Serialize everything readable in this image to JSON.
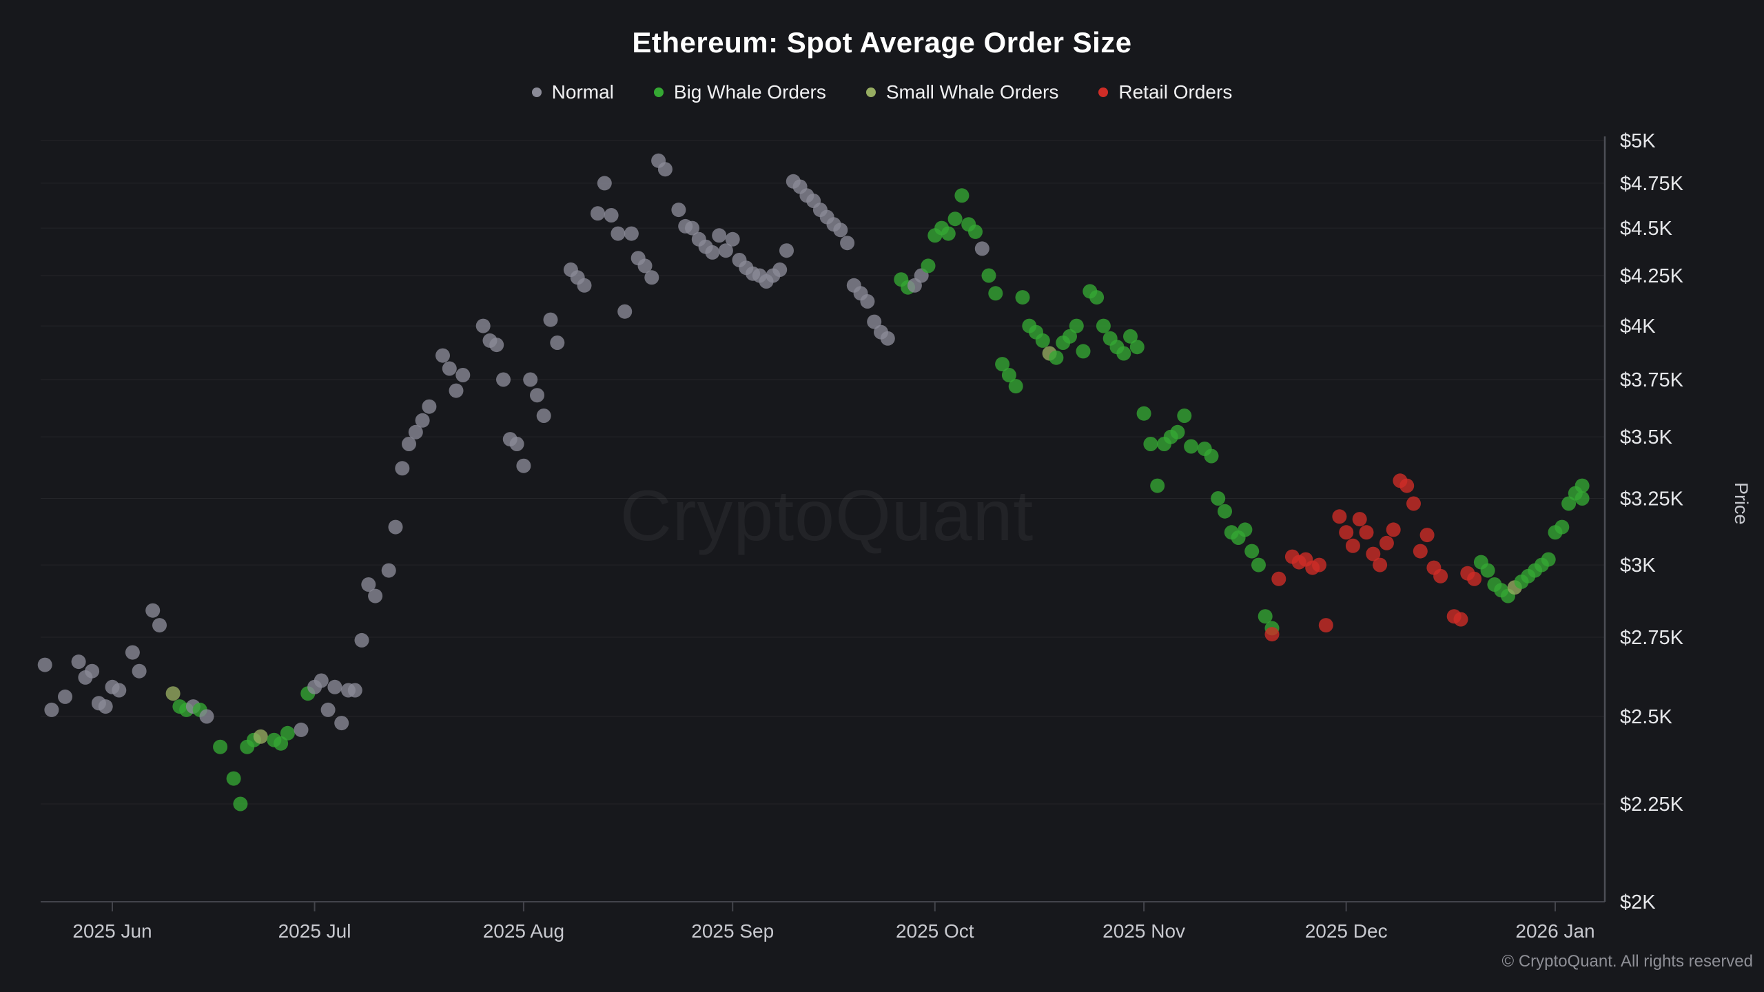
{
  "title": "Ethereum: Spot Average Order Size",
  "watermark": "CryptoQuant",
  "footer": {
    "copyright": "© CryptoQuant. All rights reserved"
  },
  "legend": [
    {
      "key": "normal",
      "label": "Normal",
      "color": "#8b8b97"
    },
    {
      "key": "big_whale",
      "label": "Big Whale Orders",
      "color": "#35a833"
    },
    {
      "key": "small_whale",
      "label": "Small Whale Orders",
      "color": "#97ad62"
    },
    {
      "key": "retail",
      "label": "Retail Orders",
      "color": "#cf2d27"
    }
  ],
  "y_axis": {
    "title": "Price",
    "scale": "log",
    "ticks": [
      {
        "label": "$5K",
        "value": 5000
      },
      {
        "label": "$4.75K",
        "value": 4750
      },
      {
        "label": "$4.5K",
        "value": 4500
      },
      {
        "label": "$4.25K",
        "value": 4250
      },
      {
        "label": "$4K",
        "value": 4000
      },
      {
        "label": "$3.75K",
        "value": 3750
      },
      {
        "label": "$3.5K",
        "value": 3500
      },
      {
        "label": "$3.25K",
        "value": 3250
      },
      {
        "label": "$3K",
        "value": 3000
      },
      {
        "label": "$2.75K",
        "value": 2750
      },
      {
        "label": "$2.5K",
        "value": 2500
      },
      {
        "label": "$2.25K",
        "value": 2250
      },
      {
        "label": "$2K",
        "value": 2000
      }
    ]
  },
  "x_axis": {
    "ticks": [
      {
        "label": "2025 Jun",
        "date": "2025-06-01"
      },
      {
        "label": "2025 Jul",
        "date": "2025-07-01"
      },
      {
        "label": "2025 Aug",
        "date": "2025-08-01"
      },
      {
        "label": "2025 Sep",
        "date": "2025-09-01"
      },
      {
        "label": "2025 Oct",
        "date": "2025-10-01"
      },
      {
        "label": "2025 Nov",
        "date": "2025-11-01"
      },
      {
        "label": "2025 Dec",
        "date": "2025-12-01"
      },
      {
        "label": "2026 Jan",
        "date": "2026-01-01"
      }
    ]
  },
  "chart_data": {
    "type": "scatter",
    "title": "Ethereum: Spot Average Order Size",
    "ylabel": "Price",
    "y_scale": "log",
    "ylim": [
      2000,
      5000
    ],
    "x_range": [
      "2025-05-20",
      "2026-01-08"
    ],
    "grid": true,
    "legend_position": "top",
    "categories": [
      "normal",
      "big_whale",
      "small_whale",
      "retail"
    ],
    "points": [
      [
        "2025-05-22",
        2660,
        "normal"
      ],
      [
        "2025-05-23",
        2520,
        "normal"
      ],
      [
        "2025-05-25",
        2560,
        "normal"
      ],
      [
        "2025-05-27",
        2670,
        "normal"
      ],
      [
        "2025-05-28",
        2620,
        "normal"
      ],
      [
        "2025-05-29",
        2640,
        "normal"
      ],
      [
        "2025-05-30",
        2540,
        "normal"
      ],
      [
        "2025-05-31",
        2530,
        "normal"
      ],
      [
        "2025-06-01",
        2590,
        "normal"
      ],
      [
        "2025-06-02",
        2580,
        "normal"
      ],
      [
        "2025-06-04",
        2700,
        "normal"
      ],
      [
        "2025-06-05",
        2640,
        "normal"
      ],
      [
        "2025-06-07",
        2840,
        "normal"
      ],
      [
        "2025-06-08",
        2790,
        "normal"
      ],
      [
        "2025-06-10",
        2570,
        "small_whale"
      ],
      [
        "2025-06-11",
        2530,
        "big_whale"
      ],
      [
        "2025-06-12",
        2520,
        "big_whale"
      ],
      [
        "2025-06-13",
        2530,
        "normal"
      ],
      [
        "2025-06-14",
        2520,
        "big_whale"
      ],
      [
        "2025-06-15",
        2500,
        "normal"
      ],
      [
        "2025-06-17",
        2410,
        "big_whale"
      ],
      [
        "2025-06-19",
        2320,
        "big_whale"
      ],
      [
        "2025-06-20",
        2250,
        "big_whale"
      ],
      [
        "2025-06-21",
        2410,
        "big_whale"
      ],
      [
        "2025-06-22",
        2430,
        "big_whale"
      ],
      [
        "2025-06-23",
        2440,
        "small_whale"
      ],
      [
        "2025-06-25",
        2430,
        "big_whale"
      ],
      [
        "2025-06-26",
        2420,
        "big_whale"
      ],
      [
        "2025-06-27",
        2450,
        "big_whale"
      ],
      [
        "2025-06-29",
        2460,
        "normal"
      ],
      [
        "2025-06-30",
        2570,
        "big_whale"
      ],
      [
        "2025-07-01",
        2590,
        "normal"
      ],
      [
        "2025-07-02",
        2610,
        "normal"
      ],
      [
        "2025-07-03",
        2520,
        "normal"
      ],
      [
        "2025-07-04",
        2590,
        "normal"
      ],
      [
        "2025-07-05",
        2480,
        "normal"
      ],
      [
        "2025-07-06",
        2580,
        "normal"
      ],
      [
        "2025-07-07",
        2580,
        "normal"
      ],
      [
        "2025-07-08",
        2740,
        "normal"
      ],
      [
        "2025-07-09",
        2930,
        "normal"
      ],
      [
        "2025-07-10",
        2890,
        "normal"
      ],
      [
        "2025-07-12",
        2980,
        "normal"
      ],
      [
        "2025-07-13",
        3140,
        "normal"
      ],
      [
        "2025-07-14",
        3370,
        "normal"
      ],
      [
        "2025-07-15",
        3470,
        "normal"
      ],
      [
        "2025-07-16",
        3520,
        "normal"
      ],
      [
        "2025-07-17",
        3570,
        "normal"
      ],
      [
        "2025-07-18",
        3630,
        "normal"
      ],
      [
        "2025-07-20",
        3860,
        "normal"
      ],
      [
        "2025-07-21",
        3800,
        "normal"
      ],
      [
        "2025-07-22",
        3700,
        "normal"
      ],
      [
        "2025-07-23",
        3770,
        "normal"
      ],
      [
        "2025-07-26",
        4000,
        "normal"
      ],
      [
        "2025-07-27",
        3930,
        "normal"
      ],
      [
        "2025-07-28",
        3910,
        "normal"
      ],
      [
        "2025-07-29",
        3750,
        "normal"
      ],
      [
        "2025-07-30",
        3490,
        "normal"
      ],
      [
        "2025-07-31",
        3470,
        "normal"
      ],
      [
        "2025-08-01",
        3380,
        "normal"
      ],
      [
        "2025-08-02",
        3750,
        "normal"
      ],
      [
        "2025-08-03",
        3680,
        "normal"
      ],
      [
        "2025-08-04",
        3590,
        "normal"
      ],
      [
        "2025-08-05",
        4030,
        "normal"
      ],
      [
        "2025-08-06",
        3920,
        "normal"
      ],
      [
        "2025-08-08",
        4280,
        "normal"
      ],
      [
        "2025-08-09",
        4240,
        "normal"
      ],
      [
        "2025-08-10",
        4200,
        "normal"
      ],
      [
        "2025-08-12",
        4580,
        "normal"
      ],
      [
        "2025-08-13",
        4750,
        "normal"
      ],
      [
        "2025-08-14",
        4570,
        "normal"
      ],
      [
        "2025-08-15",
        4470,
        "normal"
      ],
      [
        "2025-08-16",
        4070,
        "normal"
      ],
      [
        "2025-08-17",
        4470,
        "normal"
      ],
      [
        "2025-08-18",
        4340,
        "normal"
      ],
      [
        "2025-08-19",
        4300,
        "normal"
      ],
      [
        "2025-08-20",
        4240,
        "normal"
      ],
      [
        "2025-08-21",
        4880,
        "normal"
      ],
      [
        "2025-08-22",
        4830,
        "normal"
      ],
      [
        "2025-08-24",
        4600,
        "normal"
      ],
      [
        "2025-08-25",
        4510,
        "normal"
      ],
      [
        "2025-08-26",
        4500,
        "normal"
      ],
      [
        "2025-08-27",
        4440,
        "normal"
      ],
      [
        "2025-08-28",
        4400,
        "normal"
      ],
      [
        "2025-08-29",
        4370,
        "normal"
      ],
      [
        "2025-08-30",
        4460,
        "normal"
      ],
      [
        "2025-08-31",
        4380,
        "normal"
      ],
      [
        "2025-09-01",
        4440,
        "normal"
      ],
      [
        "2025-09-02",
        4330,
        "normal"
      ],
      [
        "2025-09-03",
        4290,
        "normal"
      ],
      [
        "2025-09-04",
        4260,
        "normal"
      ],
      [
        "2025-09-05",
        4250,
        "normal"
      ],
      [
        "2025-09-06",
        4220,
        "normal"
      ],
      [
        "2025-09-07",
        4250,
        "normal"
      ],
      [
        "2025-09-08",
        4280,
        "normal"
      ],
      [
        "2025-09-09",
        4380,
        "normal"
      ],
      [
        "2025-09-10",
        4760,
        "normal"
      ],
      [
        "2025-09-11",
        4730,
        "normal"
      ],
      [
        "2025-09-12",
        4680,
        "normal"
      ],
      [
        "2025-09-13",
        4650,
        "normal"
      ],
      [
        "2025-09-14",
        4600,
        "normal"
      ],
      [
        "2025-09-15",
        4560,
        "normal"
      ],
      [
        "2025-09-16",
        4520,
        "normal"
      ],
      [
        "2025-09-17",
        4490,
        "normal"
      ],
      [
        "2025-09-18",
        4420,
        "normal"
      ],
      [
        "2025-09-19",
        4200,
        "normal"
      ],
      [
        "2025-09-20",
        4160,
        "normal"
      ],
      [
        "2025-09-21",
        4120,
        "normal"
      ],
      [
        "2025-09-22",
        4020,
        "normal"
      ],
      [
        "2025-09-23",
        3970,
        "normal"
      ],
      [
        "2025-09-24",
        3940,
        "normal"
      ],
      [
        "2025-09-26",
        4230,
        "big_whale"
      ],
      [
        "2025-09-27",
        4190,
        "big_whale"
      ],
      [
        "2025-09-28",
        4200,
        "normal"
      ],
      [
        "2025-09-29",
        4250,
        "normal"
      ],
      [
        "2025-09-30",
        4300,
        "big_whale"
      ],
      [
        "2025-10-01",
        4460,
        "big_whale"
      ],
      [
        "2025-10-02",
        4500,
        "big_whale"
      ],
      [
        "2025-10-03",
        4470,
        "big_whale"
      ],
      [
        "2025-10-04",
        4550,
        "big_whale"
      ],
      [
        "2025-10-05",
        4680,
        "big_whale"
      ],
      [
        "2025-10-06",
        4520,
        "big_whale"
      ],
      [
        "2025-10-07",
        4480,
        "big_whale"
      ],
      [
        "2025-10-08",
        4390,
        "normal"
      ],
      [
        "2025-10-09",
        4250,
        "big_whale"
      ],
      [
        "2025-10-10",
        4160,
        "big_whale"
      ],
      [
        "2025-10-11",
        3820,
        "big_whale"
      ],
      [
        "2025-10-12",
        3770,
        "big_whale"
      ],
      [
        "2025-10-13",
        3720,
        "big_whale"
      ],
      [
        "2025-10-14",
        4140,
        "big_whale"
      ],
      [
        "2025-10-15",
        4000,
        "big_whale"
      ],
      [
        "2025-10-16",
        3970,
        "big_whale"
      ],
      [
        "2025-10-17",
        3930,
        "big_whale"
      ],
      [
        "2025-10-18",
        3870,
        "small_whale"
      ],
      [
        "2025-10-19",
        3850,
        "big_whale"
      ],
      [
        "2025-10-20",
        3920,
        "big_whale"
      ],
      [
        "2025-10-21",
        3950,
        "big_whale"
      ],
      [
        "2025-10-22",
        4000,
        "big_whale"
      ],
      [
        "2025-10-23",
        3880,
        "big_whale"
      ],
      [
        "2025-10-24",
        4170,
        "big_whale"
      ],
      [
        "2025-10-25",
        4140,
        "big_whale"
      ],
      [
        "2025-10-26",
        4000,
        "big_whale"
      ],
      [
        "2025-10-27",
        3940,
        "big_whale"
      ],
      [
        "2025-10-28",
        3900,
        "big_whale"
      ],
      [
        "2025-10-29",
        3870,
        "big_whale"
      ],
      [
        "2025-10-30",
        3950,
        "big_whale"
      ],
      [
        "2025-10-31",
        3900,
        "big_whale"
      ],
      [
        "2025-11-01",
        3600,
        "big_whale"
      ],
      [
        "2025-11-02",
        3470,
        "big_whale"
      ],
      [
        "2025-11-03",
        3300,
        "big_whale"
      ],
      [
        "2025-11-04",
        3470,
        "big_whale"
      ],
      [
        "2025-11-05",
        3500,
        "big_whale"
      ],
      [
        "2025-11-06",
        3520,
        "big_whale"
      ],
      [
        "2025-11-07",
        3590,
        "big_whale"
      ],
      [
        "2025-11-08",
        3460,
        "big_whale"
      ],
      [
        "2025-11-10",
        3450,
        "big_whale"
      ],
      [
        "2025-11-11",
        3420,
        "big_whale"
      ],
      [
        "2025-11-12",
        3250,
        "big_whale"
      ],
      [
        "2025-11-13",
        3200,
        "big_whale"
      ],
      [
        "2025-11-14",
        3120,
        "big_whale"
      ],
      [
        "2025-11-15",
        3100,
        "big_whale"
      ],
      [
        "2025-11-16",
        3130,
        "big_whale"
      ],
      [
        "2025-11-17",
        3050,
        "big_whale"
      ],
      [
        "2025-11-18",
        3000,
        "big_whale"
      ],
      [
        "2025-11-19",
        2820,
        "big_whale"
      ],
      [
        "2025-11-20",
        2780,
        "big_whale"
      ],
      [
        "2025-11-20",
        2760,
        "retail"
      ],
      [
        "2025-11-21",
        2950,
        "retail"
      ],
      [
        "2025-11-23",
        3030,
        "retail"
      ],
      [
        "2025-11-24",
        3010,
        "retail"
      ],
      [
        "2025-11-25",
        3020,
        "retail"
      ],
      [
        "2025-11-26",
        2990,
        "retail"
      ],
      [
        "2025-11-27",
        3000,
        "retail"
      ],
      [
        "2025-11-28",
        2790,
        "retail"
      ],
      [
        "2025-11-30",
        3180,
        "retail"
      ],
      [
        "2025-12-01",
        3120,
        "retail"
      ],
      [
        "2025-12-02",
        3070,
        "retail"
      ],
      [
        "2025-12-03",
        3170,
        "retail"
      ],
      [
        "2025-12-04",
        3120,
        "retail"
      ],
      [
        "2025-12-05",
        3040,
        "retail"
      ],
      [
        "2025-12-06",
        3000,
        "retail"
      ],
      [
        "2025-12-07",
        3080,
        "retail"
      ],
      [
        "2025-12-08",
        3130,
        "retail"
      ],
      [
        "2025-12-09",
        3320,
        "retail"
      ],
      [
        "2025-12-10",
        3300,
        "retail"
      ],
      [
        "2025-12-11",
        3230,
        "retail"
      ],
      [
        "2025-12-12",
        3050,
        "retail"
      ],
      [
        "2025-12-13",
        3110,
        "retail"
      ],
      [
        "2025-12-14",
        2990,
        "retail"
      ],
      [
        "2025-12-15",
        2960,
        "retail"
      ],
      [
        "2025-12-17",
        2820,
        "retail"
      ],
      [
        "2025-12-18",
        2810,
        "retail"
      ],
      [
        "2025-12-19",
        2970,
        "retail"
      ],
      [
        "2025-12-20",
        2950,
        "retail"
      ],
      [
        "2025-12-21",
        3010,
        "big_whale"
      ],
      [
        "2025-12-22",
        2980,
        "big_whale"
      ],
      [
        "2025-12-23",
        2930,
        "big_whale"
      ],
      [
        "2025-12-24",
        2910,
        "big_whale"
      ],
      [
        "2025-12-25",
        2890,
        "big_whale"
      ],
      [
        "2025-12-26",
        2920,
        "small_whale"
      ],
      [
        "2025-12-27",
        2940,
        "big_whale"
      ],
      [
        "2025-12-28",
        2960,
        "big_whale"
      ],
      [
        "2025-12-29",
        2980,
        "big_whale"
      ],
      [
        "2025-12-30",
        3000,
        "big_whale"
      ],
      [
        "2025-12-31",
        3020,
        "big_whale"
      ],
      [
        "2026-01-01",
        3120,
        "big_whale"
      ],
      [
        "2026-01-02",
        3140,
        "big_whale"
      ],
      [
        "2026-01-03",
        3230,
        "big_whale"
      ],
      [
        "2026-01-04",
        3270,
        "big_whale"
      ],
      [
        "2026-01-05",
        3300,
        "big_whale"
      ],
      [
        "2026-01-05",
        3250,
        "big_whale"
      ]
    ]
  }
}
